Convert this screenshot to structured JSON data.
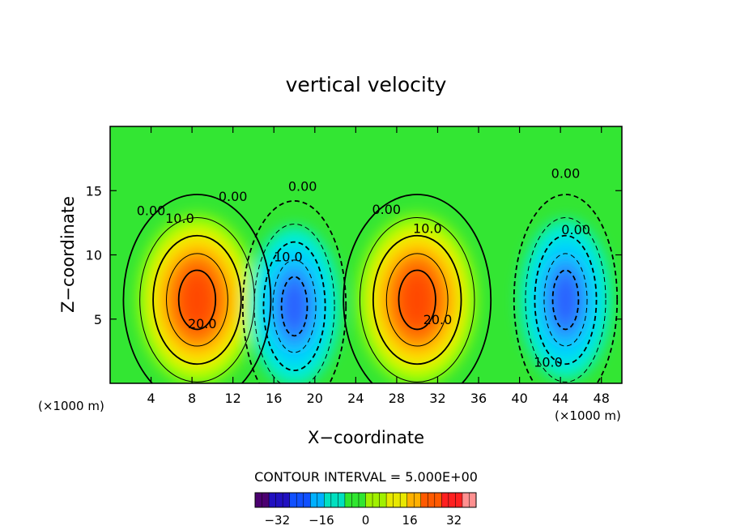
{
  "chart_data": {
    "type": "contour",
    "title": "vertical velocity",
    "xlabel": "X−coordinate",
    "ylabel": "Z−coordinate",
    "x_units_left": "(×1000 m)",
    "x_units_right": "(×1000 m)",
    "xlim": [
      0,
      50
    ],
    "ylim": [
      0,
      20
    ],
    "x_ticks": [
      4,
      8,
      12,
      16,
      20,
      24,
      28,
      32,
      36,
      40,
      44,
      48
    ],
    "y_ticks": [
      5,
      10,
      15
    ],
    "contour_interval_label": "CONTOUR INTERVAL = 5.000E+00",
    "contour_interval": 5,
    "colorbar": {
      "range": [
        -40,
        40
      ],
      "ticks": [
        -32,
        -16,
        0,
        16,
        32
      ]
    },
    "contour_labels": [
      {
        "text": "0.00",
        "x": 4,
        "y": 13.1
      },
      {
        "text": "0.00",
        "x": 12,
        "y": 14.2
      },
      {
        "text": "0.00",
        "x": 18.8,
        "y": 15.0
      },
      {
        "text": "0.00",
        "x": 27.0,
        "y": 13.2
      },
      {
        "text": "0.00",
        "x": 44.5,
        "y": 16.0
      },
      {
        "text": "0.00",
        "x": 45.5,
        "y": 11.6
      },
      {
        "text": "10.0",
        "x": 6.8,
        "y": 12.5
      },
      {
        "text": "10.0",
        "x": 31.0,
        "y": 11.7
      },
      {
        "text": "10.0",
        "x": 17.4,
        "y": 9.5
      },
      {
        "text": "10.0",
        "x": 42.8,
        "y": 1.3
      },
      {
        "text": "20.0",
        "x": 9.0,
        "y": 4.3
      },
      {
        "text": "20.0",
        "x": 32.0,
        "y": 4.6
      }
    ],
    "features": [
      {
        "kind": "updraft",
        "x": 8.5,
        "z": 6.5,
        "peak": 28
      },
      {
        "kind": "downdraft",
        "x": 18.0,
        "z": 6.0,
        "peak": -18
      },
      {
        "kind": "updraft",
        "x": 30.0,
        "z": 6.5,
        "peak": 28
      },
      {
        "kind": "downdraft",
        "x": 44.5,
        "z": 6.5,
        "peak": -18
      }
    ]
  }
}
